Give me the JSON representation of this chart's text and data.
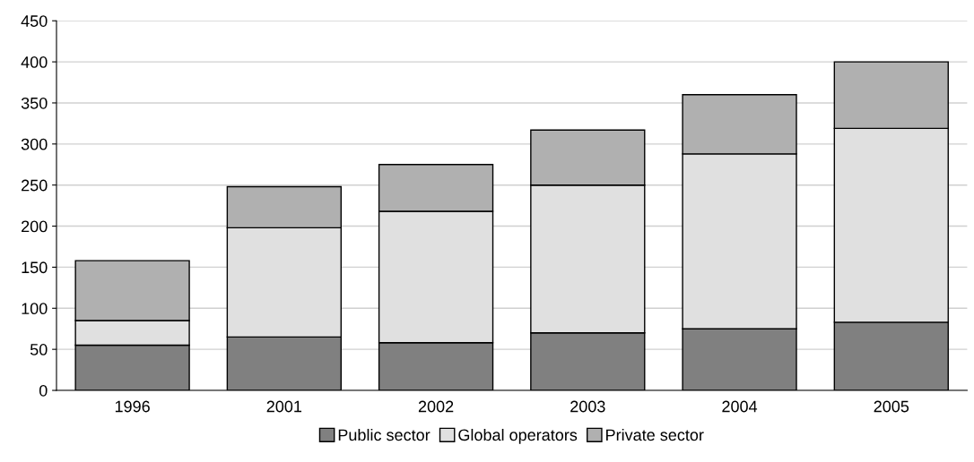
{
  "chart_data": {
    "type": "bar",
    "stacked": true,
    "categories": [
      "1996",
      "2001",
      "2002",
      "2003",
      "2004",
      "2005"
    ],
    "series": [
      {
        "name": "Public sector",
        "color": "#808080",
        "values": [
          55,
          65,
          58,
          70,
          75,
          83
        ]
      },
      {
        "name": "Global operators",
        "color": "#e0e0e0",
        "values": [
          30,
          133,
          160,
          180,
          213,
          236
        ]
      },
      {
        "name": "Private sector",
        "color": "#b0b0b0",
        "values": [
          73,
          50,
          57,
          67,
          72,
          81
        ]
      }
    ],
    "ylim": [
      0,
      450
    ],
    "yticks": [
      0,
      50,
      100,
      150,
      200,
      250,
      300,
      350,
      400,
      450
    ],
    "grid": "y",
    "legend": "bottom"
  }
}
